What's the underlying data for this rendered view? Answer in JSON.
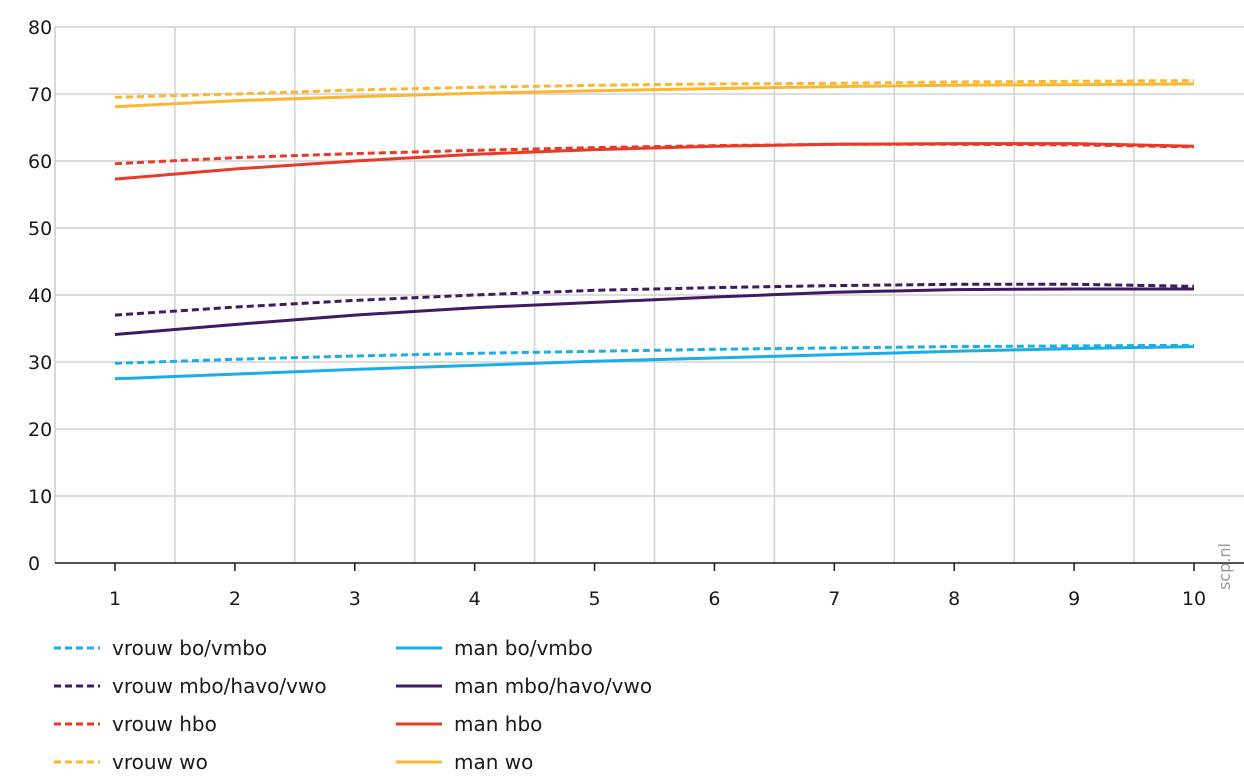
{
  "chart_data": {
    "type": "line",
    "x": [
      1,
      2,
      3,
      4,
      5,
      6,
      7,
      8,
      9,
      10
    ],
    "xlim": [
      0.5,
      10.5
    ],
    "ylim": [
      0,
      80
    ],
    "yticks": [
      0,
      10,
      20,
      30,
      40,
      50,
      60,
      70,
      80
    ],
    "xticks": [
      1,
      2,
      3,
      4,
      5,
      6,
      7,
      8,
      9,
      10
    ],
    "grid": true,
    "legend_position": "bottom-left",
    "watermark": "scp.nl",
    "series": [
      {
        "name": "vrouw bo/vmbo",
        "color": "#1aaee8",
        "dash": "dashed",
        "values": [
          29.8,
          30.4,
          30.9,
          31.3,
          31.6,
          31.9,
          32.1,
          32.3,
          32.4,
          32.5
        ]
      },
      {
        "name": "man bo/vmbo",
        "color": "#1aaee8",
        "dash": "solid",
        "values": [
          27.5,
          28.2,
          28.9,
          29.5,
          30.1,
          30.6,
          31.1,
          31.6,
          32.0,
          32.3
        ]
      },
      {
        "name": "vrouw mbo/havo/vwo",
        "color": "#3f1a63",
        "dash": "dashed",
        "values": [
          37.0,
          38.2,
          39.2,
          40.0,
          40.7,
          41.1,
          41.4,
          41.6,
          41.6,
          41.3
        ]
      },
      {
        "name": "man mbo/havo/vwo",
        "color": "#3f1a63",
        "dash": "solid",
        "values": [
          34.1,
          35.6,
          37.0,
          38.1,
          38.9,
          39.7,
          40.4,
          40.8,
          40.9,
          40.9
        ]
      },
      {
        "name": "vrouw hbo",
        "color": "#e83a26",
        "dash": "dashed",
        "values": [
          59.6,
          60.5,
          61.1,
          61.6,
          62.0,
          62.3,
          62.5,
          62.5,
          62.4,
          62.1
        ]
      },
      {
        "name": "man hbo",
        "color": "#e83a26",
        "dash": "solid",
        "values": [
          57.3,
          58.8,
          60.0,
          61.0,
          61.7,
          62.2,
          62.5,
          62.6,
          62.6,
          62.2
        ]
      },
      {
        "name": "vrouw wo",
        "color": "#fbb731",
        "dash": "dashed",
        "values": [
          69.5,
          70.0,
          70.6,
          71.0,
          71.3,
          71.5,
          71.6,
          71.8,
          71.9,
          72.0
        ]
      },
      {
        "name": "man wo",
        "color": "#fbb731",
        "dash": "solid",
        "values": [
          68.1,
          69.0,
          69.6,
          70.1,
          70.5,
          70.8,
          71.1,
          71.3,
          71.4,
          71.5
        ]
      }
    ]
  }
}
